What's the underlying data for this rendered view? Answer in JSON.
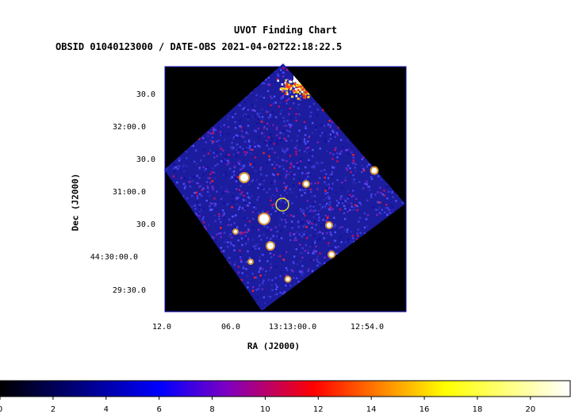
{
  "chart_data": {
    "type": "heatmap",
    "title": "UVOT Finding Chart",
    "subtitle": "OBSID 01040123000 / DATE-OBS 2021-04-02T22:18:22.5",
    "xlabel": "RA (J2000)",
    "ylabel": "Dec (J2000)",
    "x_ticks": [
      "12.0",
      "06.0",
      "13:13:00.0",
      "12:54.0"
    ],
    "y_ticks": [
      "30.0",
      "32:00.0",
      "30.0",
      "31:00.0",
      "30.0",
      "44:30:00.0",
      "29:30.0"
    ],
    "colorbar": {
      "ticks": [
        "0",
        "2",
        "4",
        "6",
        "8",
        "10",
        "12",
        "14",
        "16",
        "18",
        "20"
      ],
      "range": [
        0,
        21.5
      ],
      "colormap": "heat (black-blue-red-yellow-white)"
    },
    "marker": {
      "shape": "circle",
      "color": "#e8e020"
    },
    "colors": {
      "frame": "#1010c0",
      "background": "#000000",
      "field_low": "#1a1a9a",
      "field_high": "#ff2020",
      "star": "#ffffff"
    }
  }
}
